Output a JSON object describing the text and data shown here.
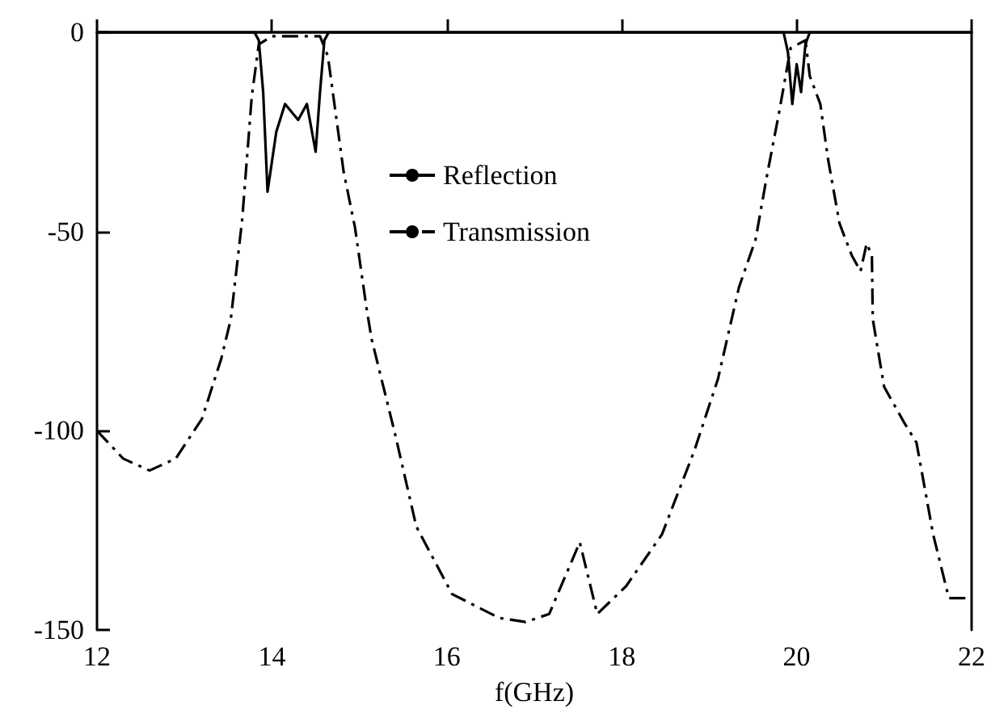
{
  "chart_data": {
    "type": "line",
    "xlabel": "f(GHz)",
    "xlim": [
      12,
      22
    ],
    "xticks": [
      12,
      14,
      16,
      18,
      20,
      22
    ],
    "ylim": [
      -150,
      0
    ],
    "yticks": [
      -150,
      -100,
      -50,
      0
    ],
    "grid": false,
    "legend": "top",
    "marker": "none",
    "series": [
      {
        "name": "Reflection",
        "color": "#000000",
        "line_style": "solid",
        "x": [
          12,
          13.8,
          13.85,
          13.9,
          13.95,
          14.05,
          14.15,
          14.3,
          14.4,
          14.5,
          14.55,
          14.6,
          14.65,
          19.85,
          19.9,
          19.95,
          20.0,
          20.05,
          20.1,
          20.15,
          22
        ],
        "values": [
          0,
          0,
          -2,
          -15,
          -40,
          -25,
          -18,
          -22,
          -18,
          -30,
          -15,
          -2,
          0,
          0,
          -5,
          -18,
          -8,
          -15,
          -3,
          0,
          0
        ]
      },
      {
        "name": "Transmission",
        "color": "#000000",
        "line_style": "dashed",
        "x": [
          12,
          12.3,
          12.6,
          12.9,
          13.2,
          13.42,
          13.53,
          13.66,
          13.77,
          13.85,
          14.0,
          14.3,
          14.55,
          14.64,
          14.82,
          14.95,
          15.08,
          15.14,
          15.41,
          15.65,
          16.06,
          16.6,
          16.9,
          17.17,
          17.52,
          17.72,
          18.05,
          18.46,
          18.83,
          19.1,
          19.34,
          19.53,
          19.66,
          19.8,
          19.93,
          20.1,
          20.15,
          20.27,
          20.36,
          20.49,
          20.63,
          20.73,
          20.8,
          20.86,
          20.87,
          21.0,
          21.23,
          21.37,
          21.56,
          21.74,
          21.94
        ],
        "values": [
          -100,
          -107,
          -110,
          -107,
          -97,
          -82,
          -72,
          -47,
          -16,
          -3,
          -1,
          -1,
          -1,
          -6,
          -35,
          -49,
          -69,
          -77,
          -101,
          -124,
          -141,
          -147,
          -148,
          -146,
          -128,
          -146,
          -139,
          -126,
          -105,
          -87,
          -64,
          -52,
          -36,
          -20,
          -4,
          -2,
          -11,
          -18,
          -32,
          -48,
          -56,
          -60,
          -53,
          -56,
          -72,
          -89,
          -98,
          -103,
          -126,
          -142,
          -142
        ]
      }
    ]
  }
}
